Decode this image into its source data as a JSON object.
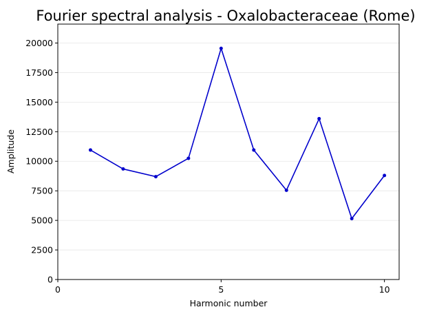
{
  "chart_data": {
    "type": "line",
    "title": "Fourier spectral analysis - Oxalobacteraceae (Rome)",
    "xlabel": "Harmonic number",
    "ylabel": "Amplitude",
    "xlim": [
      0,
      10.45
    ],
    "ylim": [
      0,
      21600
    ],
    "xticks": [
      0,
      5,
      10
    ],
    "xtick_labels": [
      "0",
      "5",
      "10"
    ],
    "yticks": [
      0,
      2500,
      5000,
      7500,
      10000,
      12500,
      15000,
      17500,
      20000
    ],
    "ytick_labels": [
      "0",
      "2500",
      "5000",
      "7500",
      "10000",
      "12500",
      "15000",
      "17500",
      "20000"
    ],
    "grid": "horizontal",
    "series": [
      {
        "color": "#0000cc",
        "marker": "dot",
        "x": [
          1,
          2,
          3,
          4,
          5,
          6,
          7,
          8,
          9,
          10
        ],
        "values": [
          10950,
          9350,
          8700,
          10250,
          19550,
          10950,
          7550,
          13600,
          5150,
          8800
        ]
      }
    ]
  }
}
